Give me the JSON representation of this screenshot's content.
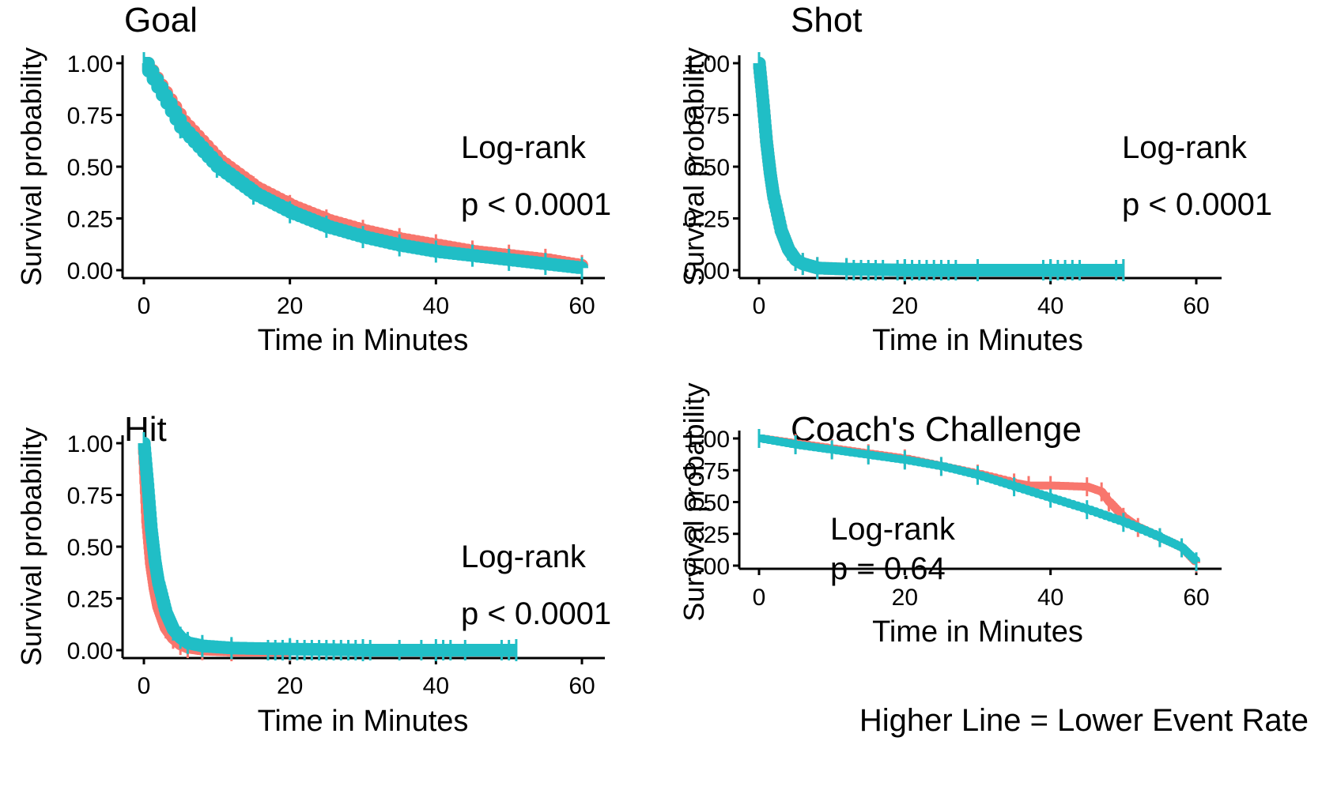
{
  "figure": {
    "footnote": "Higher Line = Lower Event Rate"
  },
  "colors": {
    "series_a": "#F8766D",
    "series_b": "#20BEC6",
    "axis": "#000000"
  },
  "chart_data": [
    {
      "type": "line",
      "subtype": "kaplan-meier survival curve",
      "title": "Goal",
      "xlabel": "Time in Minutes",
      "ylabel": "Survival probability",
      "xlim": [
        0,
        60
      ],
      "ylim": [
        0,
        1
      ],
      "x_ticks": [
        "0",
        "20",
        "40",
        "60"
      ],
      "y_ticks": [
        "0.00",
        "0.25",
        "0.50",
        "0.75",
        "1.00"
      ],
      "grid": false,
      "annotation": [
        "Log-rank",
        "p < 0.0001"
      ],
      "series": [
        {
          "name": "red group",
          "color": "#F8766D",
          "x": [
            0,
            5,
            10,
            15,
            20,
            25,
            30,
            35,
            40,
            45,
            50,
            55,
            60
          ],
          "y": [
            1.0,
            0.72,
            0.53,
            0.4,
            0.31,
            0.24,
            0.19,
            0.15,
            0.12,
            0.09,
            0.07,
            0.05,
            0.02
          ]
        },
        {
          "name": "teal group",
          "color": "#20BEC6",
          "x": [
            0,
            5,
            10,
            15,
            20,
            25,
            30,
            35,
            40,
            45,
            50,
            55,
            60
          ],
          "y": [
            1.0,
            0.69,
            0.5,
            0.37,
            0.28,
            0.21,
            0.16,
            0.12,
            0.09,
            0.07,
            0.05,
            0.03,
            0.01
          ]
        }
      ]
    },
    {
      "type": "line",
      "subtype": "kaplan-meier survival curve",
      "title": "Shot",
      "xlabel": "Time in Minutes",
      "ylabel": "Survival probability",
      "xlim": [
        0,
        60
      ],
      "ylim": [
        0,
        1
      ],
      "x_ticks": [
        "0",
        "20",
        "40",
        "60"
      ],
      "y_ticks": [
        "0.00",
        "0.25",
        "0.50",
        "0.75",
        "1.00"
      ],
      "grid": false,
      "annotation": [
        "Log-rank",
        "p < 0.0001"
      ],
      "series": [
        {
          "name": "red group",
          "color": "#F8766D",
          "x": [
            0,
            0.5,
            1,
            1.5,
            2,
            3,
            4,
            5,
            6,
            8,
            12,
            20,
            30,
            40,
            50
          ],
          "y": [
            1.0,
            0.82,
            0.62,
            0.47,
            0.35,
            0.19,
            0.1,
            0.05,
            0.03,
            0.01,
            0.005,
            0.0,
            0.0,
            0.0,
            0.0
          ]
        },
        {
          "name": "teal group",
          "color": "#20BEC6",
          "x": [
            0,
            0.5,
            1,
            1.5,
            2,
            3,
            4,
            5,
            6,
            8,
            12,
            20,
            30,
            40,
            50
          ],
          "y": [
            1.0,
            0.82,
            0.62,
            0.47,
            0.35,
            0.19,
            0.1,
            0.05,
            0.03,
            0.01,
            0.005,
            0.0,
            0.0,
            0.0,
            0.0
          ]
        }
      ]
    },
    {
      "type": "line",
      "subtype": "kaplan-meier survival curve",
      "title": "Hit",
      "xlabel": "Time in Minutes",
      "ylabel": "Survival probability",
      "xlim": [
        0,
        60
      ],
      "ylim": [
        0,
        1
      ],
      "x_ticks": [
        "0",
        "20",
        "40",
        "60"
      ],
      "y_ticks": [
        "0.00",
        "0.25",
        "0.50",
        "0.75",
        "1.00"
      ],
      "grid": false,
      "annotation": [
        "Log-rank",
        "p < 0.0001"
      ],
      "series": [
        {
          "name": "red group",
          "color": "#F8766D",
          "x": [
            0,
            0.5,
            1,
            1.5,
            2,
            3,
            4,
            5,
            6,
            8,
            12,
            20
          ],
          "y": [
            1.0,
            0.62,
            0.42,
            0.3,
            0.21,
            0.11,
            0.06,
            0.03,
            0.015,
            0.005,
            0.0,
            0.0
          ]
        },
        {
          "name": "teal group",
          "color": "#20BEC6",
          "x": [
            0,
            0.5,
            1,
            1.5,
            2,
            3,
            4,
            5,
            6,
            8,
            12,
            20,
            30,
            40,
            51
          ],
          "y": [
            1.0,
            0.8,
            0.58,
            0.43,
            0.32,
            0.18,
            0.1,
            0.06,
            0.035,
            0.02,
            0.01,
            0.005,
            0.0,
            0.0,
            0.0
          ]
        }
      ]
    },
    {
      "type": "line",
      "subtype": "kaplan-meier survival curve",
      "title": "Coach's Challenge",
      "xlabel": "Time in Minutes",
      "ylabel": "Survival probability",
      "xlim": [
        0,
        60
      ],
      "ylim": [
        0,
        1
      ],
      "x_ticks": [
        "0",
        "20",
        "40",
        "60"
      ],
      "y_ticks": [
        "0.00",
        "0.25",
        "0.50",
        "0.75",
        "1.00"
      ],
      "grid": false,
      "annotation": [
        "Log-rank",
        "p = 0.64"
      ],
      "series": [
        {
          "name": "red group",
          "color": "#F8766D",
          "x": [
            0,
            5,
            10,
            15,
            20,
            25,
            30,
            35,
            37,
            40,
            45,
            47,
            48,
            50,
            52,
            55,
            58,
            60
          ],
          "y": [
            1.0,
            0.96,
            0.92,
            0.88,
            0.84,
            0.78,
            0.72,
            0.65,
            0.63,
            0.63,
            0.62,
            0.58,
            0.5,
            0.38,
            0.3,
            0.22,
            0.14,
            0.02
          ]
        },
        {
          "name": "teal group",
          "color": "#20BEC6",
          "x": [
            0,
            5,
            10,
            15,
            20,
            25,
            30,
            35,
            40,
            45,
            50,
            55,
            58,
            60
          ],
          "y": [
            1.0,
            0.95,
            0.91,
            0.87,
            0.83,
            0.78,
            0.71,
            0.62,
            0.53,
            0.44,
            0.34,
            0.22,
            0.14,
            0.03
          ]
        }
      ]
    }
  ]
}
